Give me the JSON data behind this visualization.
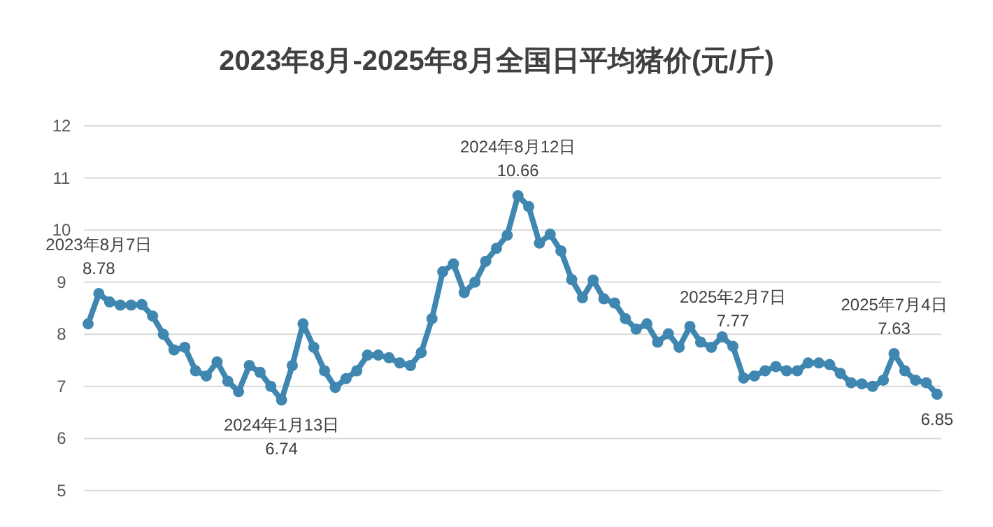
{
  "chart_data": {
    "type": "line",
    "title": "2023年8月-2025年8月全国日平均猪价(元/斤)",
    "categories": [
      null,
      null,
      null,
      null,
      null,
      null,
      null,
      null,
      null,
      null,
      null,
      null,
      null,
      null,
      null,
      null,
      null,
      null,
      null,
      null,
      null,
      null,
      null,
      null,
      null,
      null,
      null,
      null,
      null,
      null,
      null,
      null,
      null,
      null,
      null,
      null,
      null,
      null,
      null,
      null,
      null,
      null,
      null,
      null,
      null,
      null,
      null,
      null,
      null,
      null,
      null,
      null,
      null,
      null,
      null,
      null,
      null,
      null,
      null,
      null,
      null,
      null,
      null,
      null,
      null,
      null,
      null,
      null,
      null,
      null,
      null,
      null,
      null,
      null,
      null,
      null,
      null,
      null,
      null,
      null
    ],
    "series": [
      {
        "color": "#3f87b0",
        "values": [
          8.2,
          8.78,
          8.62,
          8.56,
          8.56,
          8.57,
          8.35,
          8.0,
          7.7,
          7.75,
          7.3,
          7.2,
          7.47,
          7.1,
          6.9,
          7.4,
          7.27,
          7.0,
          6.74,
          7.4,
          8.2,
          7.75,
          7.3,
          6.98,
          7.15,
          7.3,
          7.6,
          7.6,
          7.55,
          7.45,
          7.4,
          7.65,
          8.3,
          9.2,
          9.35,
          8.8,
          9.0,
          9.4,
          9.65,
          9.9,
          10.66,
          10.45,
          9.75,
          9.92,
          9.6,
          9.05,
          8.7,
          9.04,
          8.68,
          8.6,
          8.3,
          8.1,
          8.2,
          7.85,
          8.01,
          7.75,
          8.15,
          7.85,
          7.75,
          7.95,
          7.77,
          7.16,
          7.2,
          7.3,
          7.38,
          7.3,
          7.3,
          7.45,
          7.45,
          7.42,
          7.25,
          7.07,
          7.05,
          7.0,
          7.12,
          7.63,
          7.3,
          7.12,
          7.07,
          6.85
        ]
      }
    ],
    "ylim": [
      5,
      12
    ],
    "yticks": [
      5,
      6,
      7,
      8,
      9,
      10,
      11,
      12
    ],
    "tick_labels": "y",
    "grid": "y",
    "marker": "circle",
    "line_style": "solid",
    "annotations": [
      {
        "text": "2023年8月7日\n8.78",
        "y": 8.78
      },
      {
        "text": "2024年1月13日\n6.74",
        "y": 6.74
      },
      {
        "text": "2024年8月12日\n10.66",
        "y": 10.66
      },
      {
        "text": "2025年2月7日\n7.77",
        "y": 7.77
      },
      {
        "text": "2025年7月4日\n7.63",
        "y": 7.63
      },
      {
        "text": "6.85",
        "y": 6.85
      }
    ]
  }
}
